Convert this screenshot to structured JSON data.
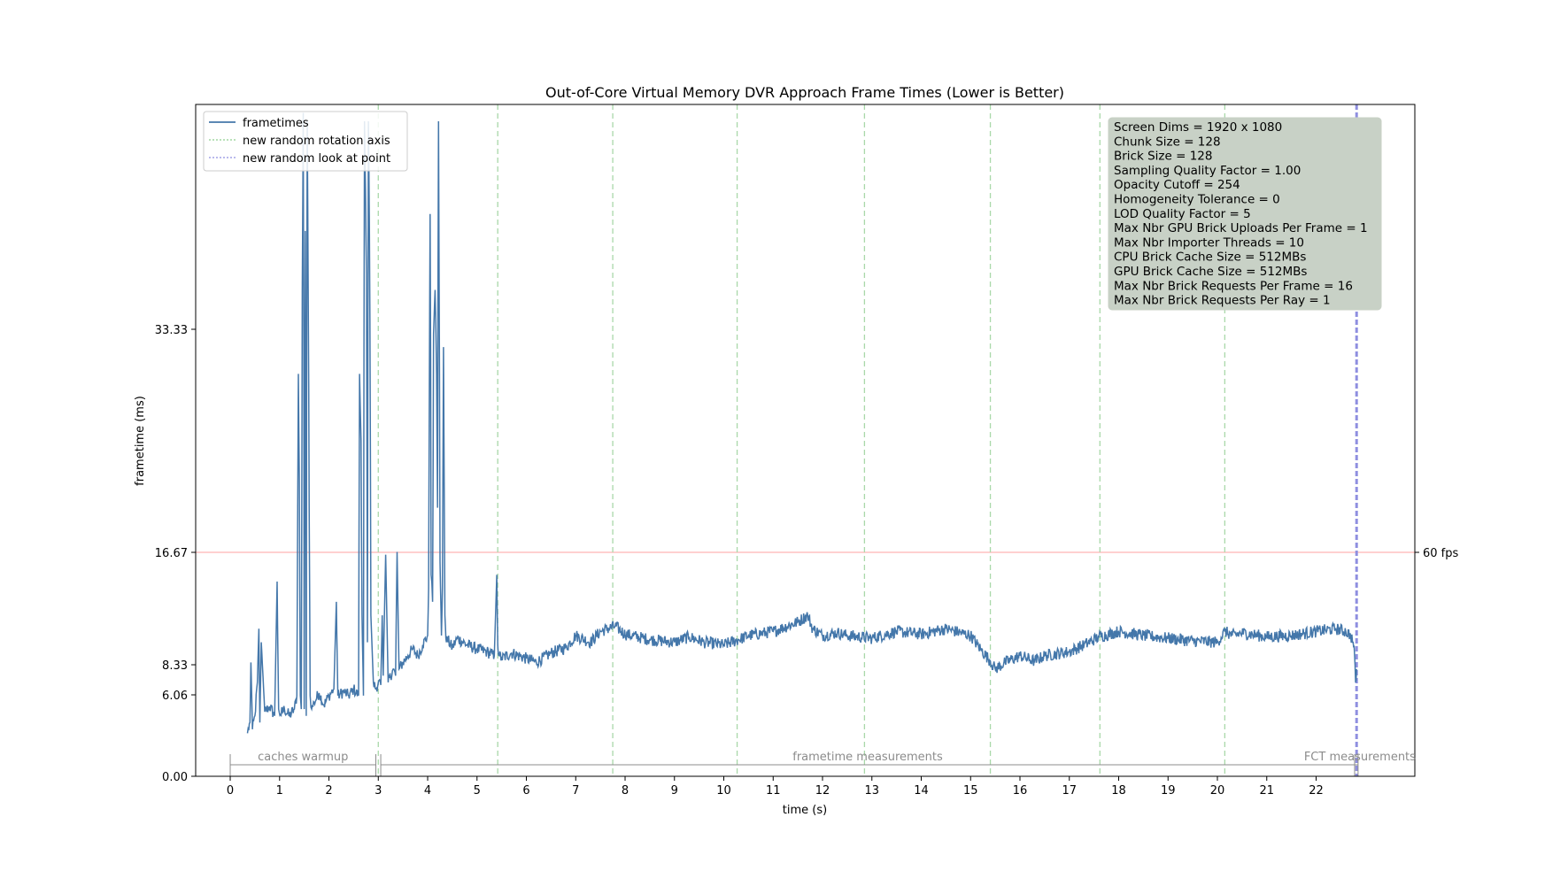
{
  "chart_data": {
    "type": "line",
    "title": "Out-of-Core Virtual Memory DVR Approach Frame Times (Lower is Better)",
    "xlabel": "time (s)",
    "ylabel": "frametime (ms)",
    "xlim": [
      -0.7,
      24.0
    ],
    "ylim": [
      0,
      60
    ],
    "x_ticks": [
      0,
      1,
      2,
      3,
      4,
      5,
      6,
      7,
      8,
      9,
      10,
      11,
      12,
      13,
      14,
      15,
      16,
      17,
      18,
      19,
      20,
      21,
      22
    ],
    "x_tick_labels": [
      "0",
      "1",
      "2",
      "3",
      "4",
      "5",
      "6",
      "7",
      "8",
      "9",
      "10",
      "11",
      "12",
      "13",
      "14",
      "15",
      "16",
      "17",
      "18",
      "19",
      "20",
      "21",
      "22"
    ],
    "y_ticks": [
      0,
      6.06,
      8.33,
      16.67,
      33.33
    ],
    "y_tick_labels": [
      "0.00",
      "6.06",
      "8.33",
      "16.67",
      "33.33"
    ],
    "reference_line": {
      "y": 16.67,
      "label": "60 fps",
      "color": "#ffb3b3"
    },
    "legend": {
      "position": "top-left",
      "entries": [
        {
          "label": "frametimes",
          "style": "solid",
          "color": "#4477aa"
        },
        {
          "label": "new random rotation axis",
          "style": "dotted",
          "color": "#8fcf8f"
        },
        {
          "label": "new random look at point",
          "style": "dotted",
          "color": "#8f8fe0"
        }
      ]
    },
    "rotation_axis_events": [
      3.0,
      5.42,
      7.75,
      10.27,
      12.85,
      15.4,
      17.62,
      20.15
    ],
    "look_at_point_events": [
      22.82
    ],
    "phases": [
      {
        "label": "caches warmup",
        "start": 0.0,
        "end": 2.95
      },
      {
        "label": "frametime measurements",
        "start": 3.05,
        "end": 22.78
      },
      {
        "label": "FCT measurements",
        "start": 22.78,
        "end": 22.85
      }
    ],
    "series": [
      {
        "name": "frametimes",
        "color": "#4477aa",
        "x": [
          0.35,
          0.4,
          0.42,
          0.45,
          0.5,
          0.55,
          0.58,
          0.6,
          0.63,
          0.7,
          0.8,
          0.9,
          0.95,
          0.98,
          1.02,
          1.1,
          1.2,
          1.3,
          1.35,
          1.38,
          1.4,
          1.42,
          1.44,
          1.46,
          1.48,
          1.5,
          1.52,
          1.54,
          1.56,
          1.58,
          1.6,
          1.62,
          1.65,
          1.7,
          1.8,
          1.9,
          2.0,
          2.1,
          2.15,
          2.18,
          2.22,
          2.3,
          2.4,
          2.5,
          2.6,
          2.62,
          2.65,
          2.67,
          2.7,
          2.72,
          2.74,
          2.76,
          2.78,
          2.8,
          2.82,
          2.85,
          2.9,
          2.95,
          3.0,
          3.05,
          3.08,
          3.1,
          3.15,
          3.2,
          3.3,
          3.35,
          3.38,
          3.42,
          3.5,
          3.6,
          3.7,
          3.8,
          3.9,
          4.0,
          4.02,
          4.05,
          4.07,
          4.1,
          4.12,
          4.15,
          4.18,
          4.2,
          4.22,
          4.25,
          4.28,
          4.3,
          4.32,
          4.35,
          4.38,
          4.4,
          4.5,
          4.6,
          4.8,
          5.0,
          5.2,
          5.35,
          5.4,
          5.42,
          5.45,
          5.5,
          5.7,
          6.0,
          6.2,
          6.5,
          6.8,
          7.0,
          7.3,
          7.5,
          7.8,
          8.0,
          8.5,
          9.0,
          9.3,
          9.6,
          10.0,
          10.3,
          10.5,
          11.0,
          11.5,
          11.7,
          11.8,
          12.0,
          12.3,
          12.5,
          13.0,
          13.5,
          14.0,
          14.5,
          15.0,
          15.2,
          15.4,
          15.5,
          15.7,
          16.0,
          16.3,
          16.5,
          17.0,
          17.3,
          17.6,
          18.0,
          18.5,
          19.0,
          19.5,
          20.0,
          20.15,
          20.3,
          20.5,
          21.0,
          21.5,
          22.0,
          22.4,
          22.6,
          22.7,
          22.75,
          22.78,
          22.8,
          22.82
        ],
        "y": [
          3.2,
          4.0,
          8.5,
          3.5,
          4.5,
          7.0,
          11.0,
          4.0,
          10.0,
          4.8,
          5.2,
          4.5,
          14.5,
          5.0,
          4.6,
          5.0,
          4.5,
          5.0,
          6.0,
          30.0,
          22.0,
          6.0,
          5.0,
          38.0,
          59.0,
          5.0,
          45.0,
          4.5,
          58.0,
          38.0,
          20.0,
          6.0,
          5.0,
          5.5,
          6.2,
          5.3,
          6.0,
          6.5,
          13.0,
          6.0,
          6.1,
          6.3,
          6.0,
          6.5,
          6.0,
          30.0,
          25.0,
          12.0,
          6.0,
          58.0,
          50.0,
          40.0,
          10.0,
          58.0,
          46.0,
          12.0,
          7.0,
          6.5,
          7.0,
          6.8,
          12.0,
          7.5,
          16.5,
          7.0,
          8.0,
          7.5,
          16.7,
          8.0,
          8.5,
          9.0,
          9.5,
          9.0,
          9.8,
          10.5,
          14.0,
          47.0,
          15.0,
          13.0,
          33.0,
          38.0,
          30.0,
          20.0,
          58.0,
          16.0,
          10.5,
          14.0,
          32.0,
          12.0,
          10.0,
          10.2,
          9.6,
          10.3,
          9.8,
          9.5,
          9.3,
          9.0,
          15.0,
          9.8,
          9.0,
          8.8,
          9.2,
          8.8,
          8.5,
          9.2,
          9.6,
          10.5,
          10.0,
          10.8,
          11.2,
          10.6,
          10.2,
          10.0,
          10.4,
          10.0,
          9.8,
          10.2,
          10.5,
          10.8,
          11.5,
          12.0,
          11.0,
          10.5,
          10.7,
          10.5,
          10.3,
          10.8,
          10.6,
          11.0,
          10.5,
          9.5,
          8.6,
          8.0,
          8.5,
          9.0,
          8.6,
          9.0,
          9.3,
          9.8,
          10.4,
          10.8,
          10.5,
          10.3,
          10.1,
          10.0,
          10.8,
          10.5,
          10.7,
          10.4,
          10.5,
          10.8,
          11.0,
          10.8,
          10.5,
          10.0,
          9.0,
          7.0,
          8.0
        ]
      }
    ],
    "info_box_lines": [
      "Screen Dims = 1920 x 1080",
      "Chunk Size = 128",
      "Brick Size = 128",
      "Sampling Quality Factor = 1.00",
      "Opacity Cutoff = 254",
      "Homogeneity Tolerance = 0",
      "LOD Quality Factor = 5",
      "Max Nbr GPU Brick Uploads Per Frame = 1",
      "Max Nbr Importer Threads = 10",
      "CPU Brick Cache Size = 512MBs",
      "GPU Brick Cache Size = 512MBs",
      "Max Nbr Brick Requests Per Frame = 16",
      "Max Nbr Brick Requests Per Ray = 1"
    ],
    "info_box_color": "#c8d1c6",
    "grid": false
  }
}
